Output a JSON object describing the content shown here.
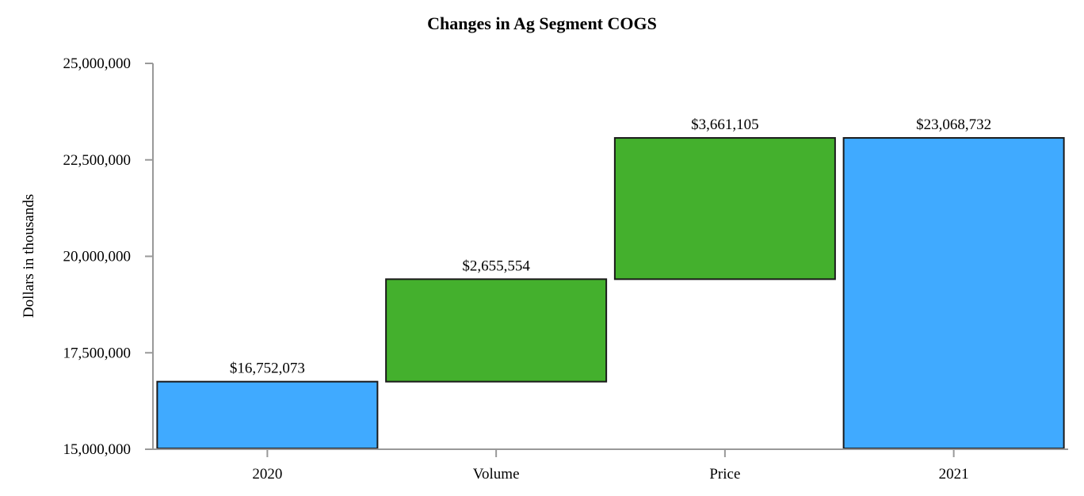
{
  "chart_data": {
    "type": "waterfall",
    "title": "Changes in Ag Segment COGS",
    "xlabel": "",
    "ylabel": "Dollars in thousands",
    "ylim": [
      15000000,
      25000000
    ],
    "yticks": [
      "15,000,000",
      "17,500,000",
      "20,000,000",
      "22,500,000",
      "25,000,000"
    ],
    "categories": [
      "2020",
      "Volume",
      "Price",
      "2021"
    ],
    "values": [
      16752073,
      2655554,
      3661105,
      23068732
    ],
    "labels": [
      "$16,752,073",
      "$2,655,554",
      "$3,661,105",
      "$23,068,732"
    ],
    "bar_kinds": [
      "total",
      "increase",
      "increase",
      "total"
    ],
    "colors": {
      "total": "#40aaff",
      "increase": "#44b02d"
    },
    "grid": false,
    "legend": null
  }
}
